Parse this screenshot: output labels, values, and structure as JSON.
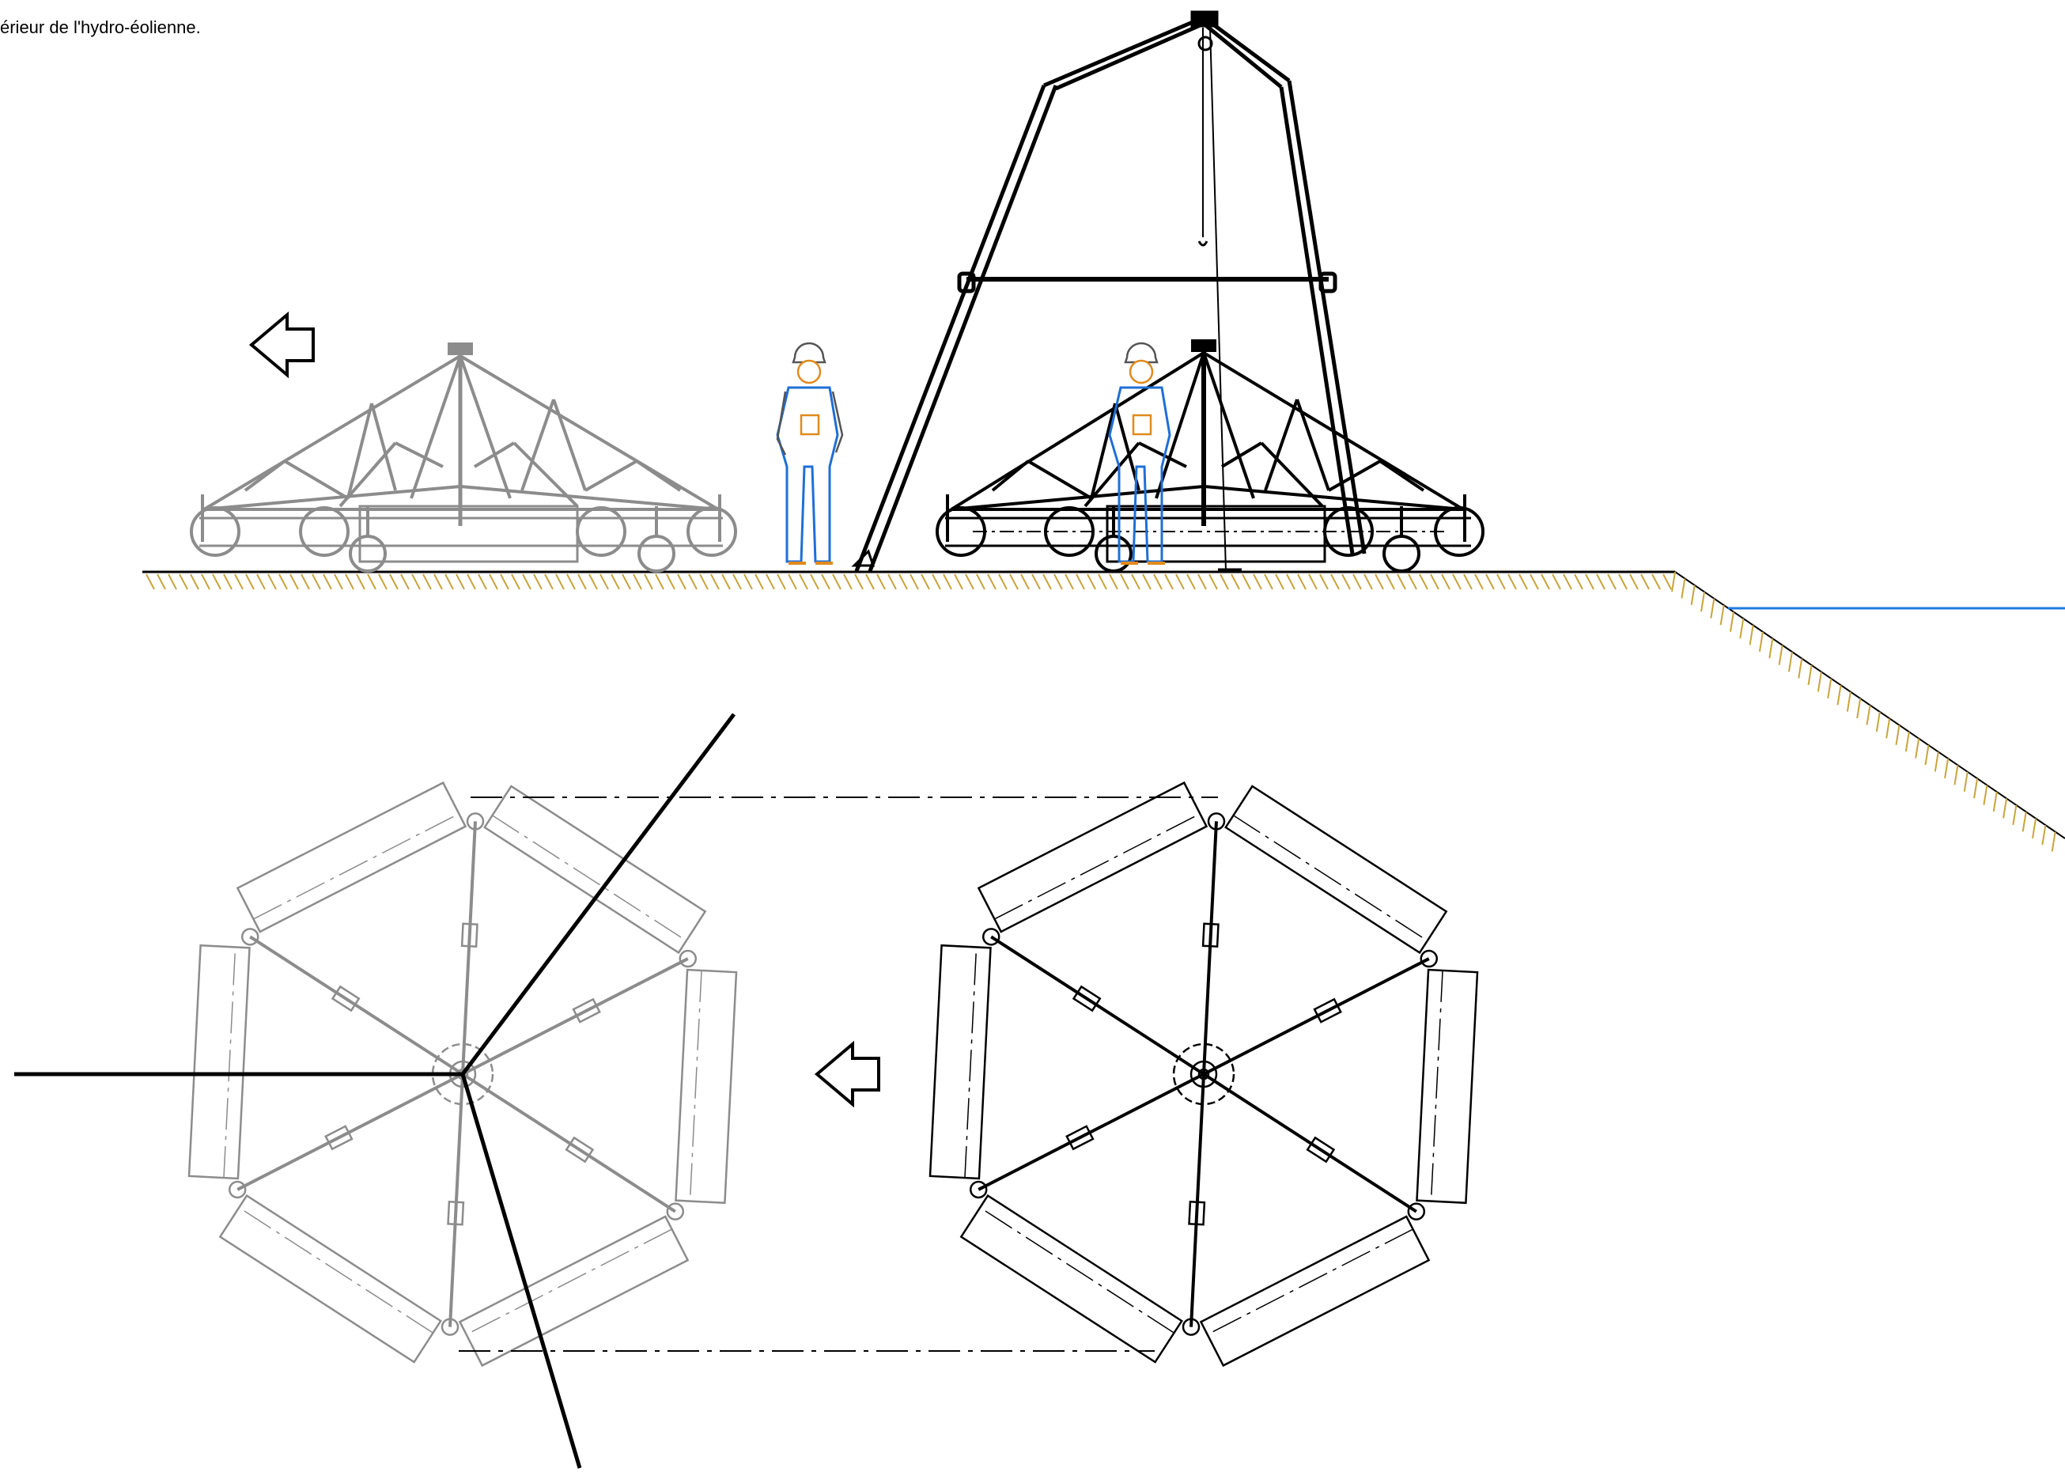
{
  "caption": "érieur de l'hydro-éolienne.",
  "colors": {
    "structure_moving": "#000000",
    "structure_ghost": "#8c8c8c",
    "worker_outline": "#e08a1e",
    "worker_suit": "#1f6fd6",
    "ground_hatch": "#c8a43c",
    "water_line": "#1f7ae0"
  },
  "icons": {
    "direction_arrow": "left-arrow-outline-icon"
  }
}
